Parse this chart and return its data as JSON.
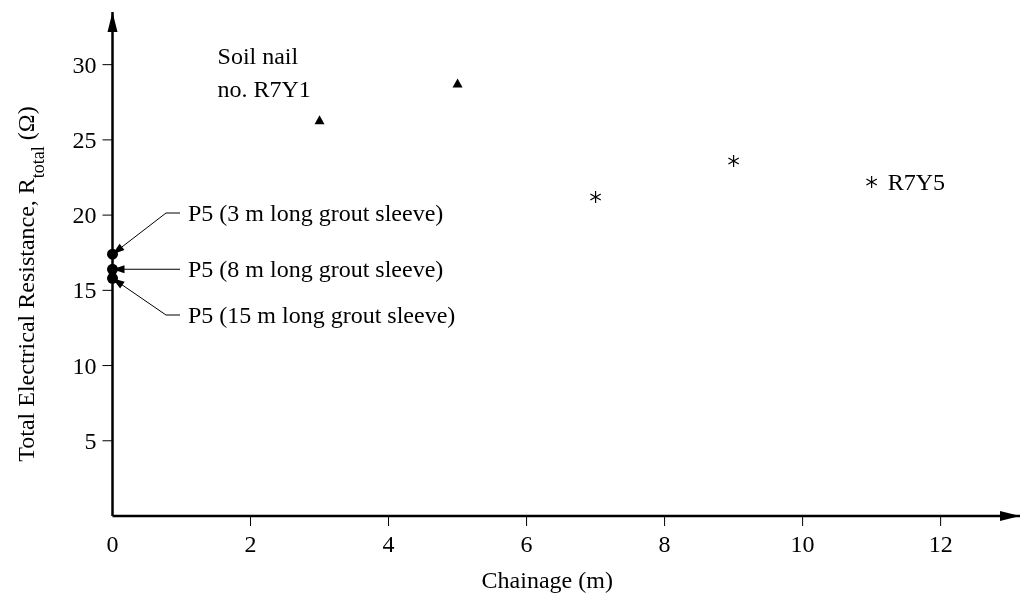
{
  "chart_data": {
    "type": "scatter",
    "xlabel": "Chainage (m)",
    "ylabel": "Total Electrical Resistance, R$_{total}$ (Ω)",
    "xlim": [
      0,
      13.15
    ],
    "ylim": [
      0,
      33.5
    ],
    "xticks": [
      0,
      2,
      4,
      6,
      8,
      10,
      12
    ],
    "yticks": [
      5,
      10,
      15,
      20,
      25,
      30
    ],
    "grid": false,
    "series": [
      {
        "color": "#000000",
        "marker": "triangle",
        "x": [
          3,
          5
        ],
        "values": [
          26.3,
          28.75
        ]
      },
      {
        "color": "#000000",
        "marker": "cross",
        "x": [
          7,
          9,
          11
        ],
        "values": [
          21.2,
          23.6,
          22.2
        ]
      },
      {
        "color": "#000000",
        "marker": "circle",
        "x": [
          0,
          0,
          0
        ],
        "values": [
          17.4,
          16.4,
          15.8
        ]
      }
    ],
    "annotations": [
      {
        "text": "Soil nail no. R7Y1",
        "x": 3,
        "y": 26.3
      },
      {
        "text": "R7Y5",
        "x": 11,
        "y": 22.2
      },
      {
        "text": "P5 (3 m long grout sleeve)",
        "x": 0,
        "y": 17.4
      },
      "P5 (8 m long grout sleeve)",
      {
        "text": "P5 (15 m long grout sleeve)",
        "x": 0,
        "y": 15.8
      }
    ]
  }
}
